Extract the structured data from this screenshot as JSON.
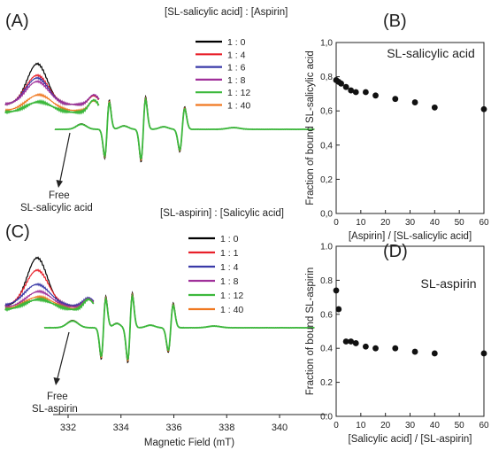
{
  "panels": {
    "A": "(A)",
    "B": "(B)",
    "C": "(C)",
    "D": "(D)"
  },
  "chart_data": [
    {
      "panel": "A",
      "type": "line",
      "legend_title": "[SL-salicylic acid] : [Aspirin]",
      "legend": [
        "1 : 0",
        "1 : 4",
        "1 : 6",
        "1 : 8",
        "1 : 12",
        "1 : 40"
      ],
      "colors": [
        "#000000",
        "#e8202a",
        "#3a3aa8",
        "#a0309a",
        "#3cb83c",
        "#f07820"
      ],
      "annotation": [
        "Free",
        "SL-salicylic acid"
      ]
    },
    {
      "panel": "B",
      "type": "scatter",
      "subtitle": "SL-salicylic acid",
      "xlabel": "[Aspirin] / [SL-salicylic acid]",
      "ylabel": "Fraction of bound SL-salicylic acid",
      "xlim": [
        0,
        60
      ],
      "ylim": [
        0.0,
        1.0
      ],
      "xticks": [
        "0",
        "10",
        "20",
        "30",
        "40",
        "50",
        "60"
      ],
      "yticks": [
        "0,0",
        "0,2",
        "0,4",
        "0,6",
        "0,8",
        "1,0"
      ],
      "x": [
        0,
        1,
        2,
        4,
        6,
        8,
        12,
        16,
        24,
        32,
        40,
        60
      ],
      "y": [
        0.78,
        0.77,
        0.76,
        0.74,
        0.72,
        0.71,
        0.71,
        0.69,
        0.67,
        0.65,
        0.62,
        0.61
      ]
    },
    {
      "panel": "C",
      "type": "line",
      "legend_title": "[SL-aspirin] : [Salicylic acid]",
      "legend": [
        "1 : 0",
        "1 : 1",
        "1 : 4",
        "1 : 8",
        "1 : 12",
        "1 : 40"
      ],
      "colors": [
        "#000000",
        "#e8202a",
        "#3a3aa8",
        "#a0309a",
        "#3cb83c",
        "#f07820"
      ],
      "annotation": [
        "Free",
        "SL-aspirin"
      ],
      "xlabel": "Magnetic Field (mT)",
      "xticks": [
        "332",
        "334",
        "336",
        "338",
        "340"
      ]
    },
    {
      "panel": "D",
      "type": "scatter",
      "subtitle": "SL-aspirin",
      "xlabel": "[Salicylic acid] / [SL-aspirin]",
      "ylabel": "Fraction of bound SL-aspirin",
      "xlim": [
        0,
        60
      ],
      "ylim": [
        0.0,
        1.0
      ],
      "xticks": [
        "0",
        "10",
        "20",
        "30",
        "40",
        "50",
        "60"
      ],
      "yticks": [
        "0.0",
        "0.2",
        "0.4",
        "0.6",
        "0.8",
        "1.0"
      ],
      "x": [
        0,
        1,
        4,
        6,
        8,
        12,
        16,
        24,
        32,
        40,
        60
      ],
      "y": [
        0.74,
        0.63,
        0.44,
        0.44,
        0.43,
        0.41,
        0.4,
        0.4,
        0.38,
        0.37,
        0.37
      ]
    }
  ]
}
